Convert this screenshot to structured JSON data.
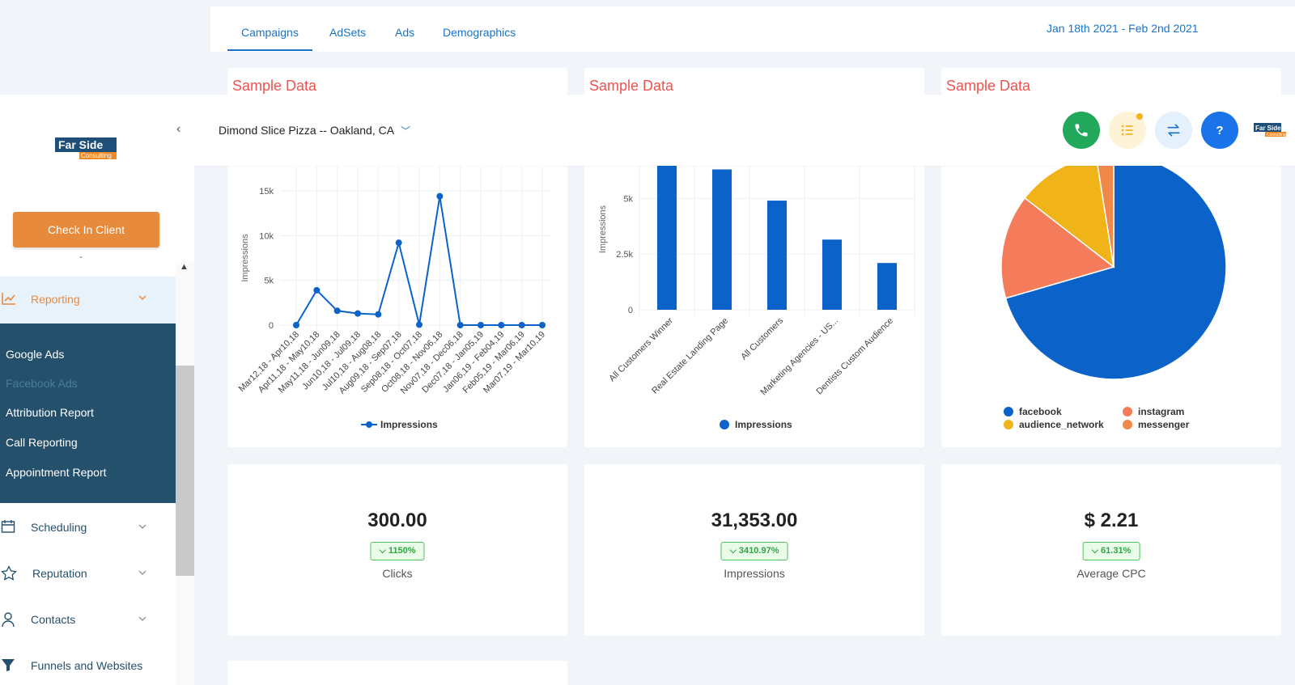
{
  "tabs": [
    {
      "label": "Campaigns",
      "active": true
    },
    {
      "label": "AdSets"
    },
    {
      "label": "Ads"
    },
    {
      "label": "Demographics"
    }
  ],
  "date_range": "Jan 18th 2021 - Feb 2nd 2021",
  "header": {
    "location": "Dimond Slice Pizza -- Oakland, CA",
    "buttons": [
      "phone-icon",
      "list-icon",
      "swap-icon",
      "help-icon"
    ],
    "colors": {
      "phone": "#22a85a",
      "list_bg": "#fef3d6",
      "list_fg": "#f0b429",
      "swap_bg": "#e4f0fb",
      "swap_fg": "#1a73c9",
      "help": "#1a73e8"
    }
  },
  "logo": {
    "line1": "Far Side",
    "line2": "Consulting"
  },
  "sidebar": {
    "check_in_label": "Check In Client",
    "dash": "-",
    "reporting": {
      "label": "Reporting",
      "items": [
        "Google Ads",
        "Facebook Ads",
        "Attribution Report",
        "Call Reporting",
        "Appointment Report"
      ],
      "active_item": "Facebook Ads"
    },
    "nav": [
      "Scheduling",
      "Reputation",
      "Contacts",
      "Funnels and Websites"
    ]
  },
  "cards": {
    "sample_title": "Sample Data"
  },
  "chart_data": [
    {
      "type": "line",
      "ylabel": "Impressions",
      "ylim": [
        0,
        15000
      ],
      "yticks": [
        "0",
        "5k",
        "10k",
        "15k"
      ],
      "categories": [
        "Mar12,18 - Apr10,18",
        "Apr11,18 - May10,18",
        "May11,18 - Jun09,18",
        "Jun10,18 - Jul09,18",
        "Jul10,18 - Aug08,18",
        "Aug09,18 - Sep07,18",
        "Sep08,18 - Oct07,18",
        "Oct08,18 - Nov06,18",
        "Nov07,18 - Dec06,18",
        "Dec07,18 - Jan05,19",
        "Jan06,19 - Feb04,19",
        "Feb05,19 - Mar06,19",
        "Mar07,19 - Mar10,19"
      ],
      "series": [
        {
          "name": "Impressions",
          "values": [
            0,
            3900,
            1600,
            1300,
            1200,
            9200,
            50,
            14400,
            0,
            0,
            0,
            0,
            0
          ]
        }
      ],
      "legend": "bottom",
      "color": "#0b63c9"
    },
    {
      "type": "bar",
      "ylabel": "Impressions",
      "ylim": [
        0,
        6500
      ],
      "yticks": [
        "0",
        "2.5k",
        "5k"
      ],
      "categories": [
        "All Customers Winner",
        "Real Estate Landing Page",
        "All Customers",
        "Marketing Agencies - US...",
        "Dentists Custom Audience"
      ],
      "series": [
        {
          "name": "Impressions",
          "values": [
            6900,
            6300,
            4900,
            3150,
            2100
          ]
        }
      ],
      "legend": "bottom",
      "color": "#0b63c9"
    },
    {
      "type": "pie",
      "slices": [
        {
          "name": "facebook",
          "value": 70.5,
          "color": "#0b63c9"
        },
        {
          "name": "instagram",
          "value": 15,
          "color": "#f47c5b"
        },
        {
          "name": "audience_network",
          "value": 12,
          "color": "#f0b418"
        },
        {
          "name": "messenger",
          "value": 2.5,
          "color": "#f0884a"
        }
      ],
      "legend": "bottom"
    }
  ],
  "stats": [
    {
      "value": "300.00",
      "change": "1150%",
      "label": "Clicks"
    },
    {
      "value": "31,353.00",
      "change": "3410.97%",
      "label": "Impressions"
    },
    {
      "value": "$ 2.21",
      "change": "61.31%",
      "label": "Average CPC"
    }
  ]
}
